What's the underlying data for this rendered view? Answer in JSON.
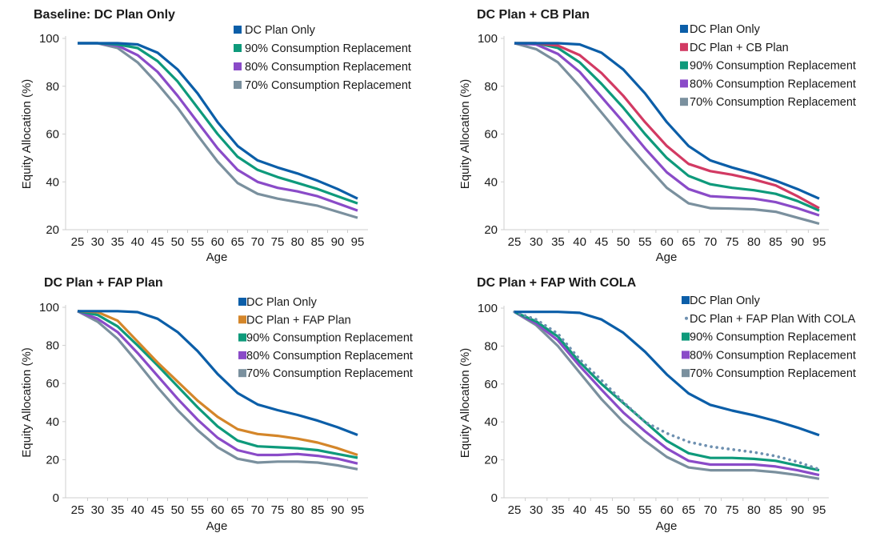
{
  "chart_data": [
    {
      "type": "line",
      "title": "Baseline: DC Plan Only",
      "xlabel": "Age",
      "ylabel": "Equity Allocation (%)",
      "x": [
        25,
        30,
        35,
        40,
        45,
        50,
        55,
        60,
        65,
        70,
        75,
        80,
        85,
        90,
        95
      ],
      "ylim": [
        20,
        100
      ],
      "yticks": [
        20,
        40,
        60,
        80,
        100
      ],
      "grid": false,
      "legend": "top-right",
      "series": [
        {
          "name": "DC Plan Only",
          "color": "#0b5ea8",
          "style": "solid",
          "values": [
            98,
            98,
            98,
            97.5,
            94,
            87,
            77,
            65,
            55,
            49,
            46,
            43.5,
            40.5,
            37,
            33
          ]
        },
        {
          "name": "90% Consumption Replacement",
          "color": "#0e9a7b",
          "style": "solid",
          "values": [
            98,
            98,
            97.5,
            96,
            90.5,
            82,
            71,
            60,
            50.5,
            45,
            42,
            39.5,
            37,
            34,
            31
          ]
        },
        {
          "name": "80% Consumption Replacement",
          "color": "#8a4bc8",
          "style": "solid",
          "values": [
            98,
            98,
            97,
            93,
            86,
            76,
            65,
            54,
            45,
            40,
            37.5,
            36,
            34,
            31,
            28
          ]
        },
        {
          "name": "70% Consumption Replacement",
          "color": "#7a909e",
          "style": "solid",
          "values": [
            98,
            98,
            96,
            90,
            81,
            71,
            59.5,
            48.5,
            39.5,
            35,
            33,
            31.5,
            30,
            27.5,
            25
          ]
        }
      ]
    },
    {
      "type": "line",
      "title": "DC Plan + CB Plan",
      "xlabel": "Age",
      "ylabel": "Equity Allocation (%)",
      "x": [
        25,
        30,
        35,
        40,
        45,
        50,
        55,
        60,
        65,
        70,
        75,
        80,
        85,
        90,
        95
      ],
      "ylim": [
        20,
        100
      ],
      "yticks": [
        20,
        40,
        60,
        80,
        100
      ],
      "grid": false,
      "legend": "top-right",
      "series": [
        {
          "name": "DC Plan Only",
          "color": "#0b5ea8",
          "style": "solid",
          "values": [
            98,
            98,
            98,
            97.5,
            94,
            87,
            77,
            65,
            55,
            49,
            46,
            43.5,
            40.5,
            37,
            33
          ]
        },
        {
          "name": "DC Plan + CB Plan",
          "color": "#d23a63",
          "style": "solid",
          "values": [
            98,
            98,
            97,
            93,
            85.5,
            76,
            65,
            55,
            47.5,
            44.5,
            43,
            41,
            38.5,
            34,
            29
          ]
        },
        {
          "name": "90% Consumption Replacement",
          "color": "#0e9a7b",
          "style": "solid",
          "values": [
            98,
            98,
            96,
            90,
            81,
            71,
            60,
            50,
            42.5,
            39,
            37.5,
            36.5,
            35,
            32,
            28
          ]
        },
        {
          "name": "80% Consumption Replacement",
          "color": "#8a4bc8",
          "style": "solid",
          "values": [
            98,
            97.5,
            93.5,
            86,
            75.5,
            65,
            54,
            44,
            37,
            34,
            33.5,
            33,
            31.5,
            29,
            26
          ]
        },
        {
          "name": "70% Consumption Replacement",
          "color": "#7a909e",
          "style": "solid",
          "values": [
            98,
            95.5,
            90,
            80,
            69,
            58,
            47.5,
            37.5,
            31,
            29,
            28.8,
            28.5,
            27.5,
            25,
            22.5
          ]
        }
      ]
    },
    {
      "type": "line",
      "title": "DC Plan + FAP Plan",
      "xlabel": "Age",
      "ylabel": "Equity Allocation (%)",
      "x": [
        25,
        30,
        35,
        40,
        45,
        50,
        55,
        60,
        65,
        70,
        75,
        80,
        85,
        90,
        95
      ],
      "ylim": [
        0,
        100
      ],
      "yticks": [
        0,
        20,
        40,
        60,
        80,
        100
      ],
      "grid": false,
      "legend": "top-right",
      "series": [
        {
          "name": "DC Plan Only",
          "color": "#0b5ea8",
          "style": "solid",
          "values": [
            98,
            98,
            98,
            97.5,
            94,
            87,
            77,
            65,
            55,
            49,
            46,
            43.5,
            40.5,
            37,
            33
          ]
        },
        {
          "name": "DC Plan + FAP Plan",
          "color": "#d4862a",
          "style": "solid",
          "values": [
            98,
            97.5,
            93,
            82,
            71,
            61,
            51,
            42.5,
            36,
            33.5,
            32.5,
            31,
            29,
            26,
            22.5
          ]
        },
        {
          "name": "90% Consumption Replacement",
          "color": "#0e9a7b",
          "style": "solid",
          "values": [
            98,
            96,
            90,
            80,
            69.5,
            58.5,
            47.5,
            37.5,
            30,
            27,
            26.5,
            26,
            25,
            23,
            21
          ]
        },
        {
          "name": "80% Consumption Replacement",
          "color": "#8a4bc8",
          "style": "solid",
          "values": [
            98,
            94,
            87,
            76,
            64,
            52,
            41,
            31.5,
            25,
            22.5,
            22.5,
            23,
            22,
            20.5,
            18
          ]
        },
        {
          "name": "70% Consumption Replacement",
          "color": "#7a909e",
          "style": "solid",
          "values": [
            98,
            92.5,
            83.5,
            71,
            58,
            46,
            35.5,
            26.5,
            20.5,
            18.5,
            19,
            19,
            18.5,
            17,
            15
          ]
        }
      ]
    },
    {
      "type": "line",
      "title": "DC Plan + FAP With COLA",
      "xlabel": "Age",
      "ylabel": "Equity Allocation (%)",
      "x": [
        25,
        30,
        35,
        40,
        45,
        50,
        55,
        60,
        65,
        70,
        75,
        80,
        85,
        90,
        95
      ],
      "ylim": [
        0,
        100
      ],
      "yticks": [
        0,
        20,
        40,
        60,
        80,
        100
      ],
      "grid": false,
      "legend": "top-right",
      "series": [
        {
          "name": "DC Plan Only",
          "color": "#0b5ea8",
          "style": "solid",
          "values": [
            98,
            98,
            98,
            97.5,
            94,
            87,
            77,
            65,
            55,
            49,
            46,
            43.5,
            40.5,
            37,
            33
          ]
        },
        {
          "name": "DC Plan + FAP Plan With COLA",
          "color": "#6e90b0",
          "style": "dotted",
          "values": [
            98,
            94,
            86.5,
            73,
            62,
            50.5,
            40,
            34,
            29.5,
            27,
            25.5,
            24,
            22,
            19,
            15
          ]
        },
        {
          "name": "90% Consumption Replacement",
          "color": "#0e9a7b",
          "style": "solid",
          "values": [
            98,
            93,
            85,
            71.5,
            60,
            50,
            40,
            30,
            23.5,
            21,
            21,
            20.5,
            19.5,
            17,
            14.5
          ]
        },
        {
          "name": "80% Consumption Replacement",
          "color": "#8a4bc8",
          "style": "solid",
          "values": [
            98,
            92,
            83,
            69.5,
            57,
            45,
            35,
            26,
            19.5,
            17.5,
            17.5,
            17.5,
            16.5,
            14.5,
            12
          ]
        },
        {
          "name": "70% Consumption Replacement",
          "color": "#7a909e",
          "style": "solid",
          "values": [
            98,
            91,
            80,
            66,
            52,
            40,
            30,
            21.5,
            16,
            14.5,
            14.5,
            14.5,
            13.5,
            12,
            10
          ]
        }
      ]
    }
  ]
}
